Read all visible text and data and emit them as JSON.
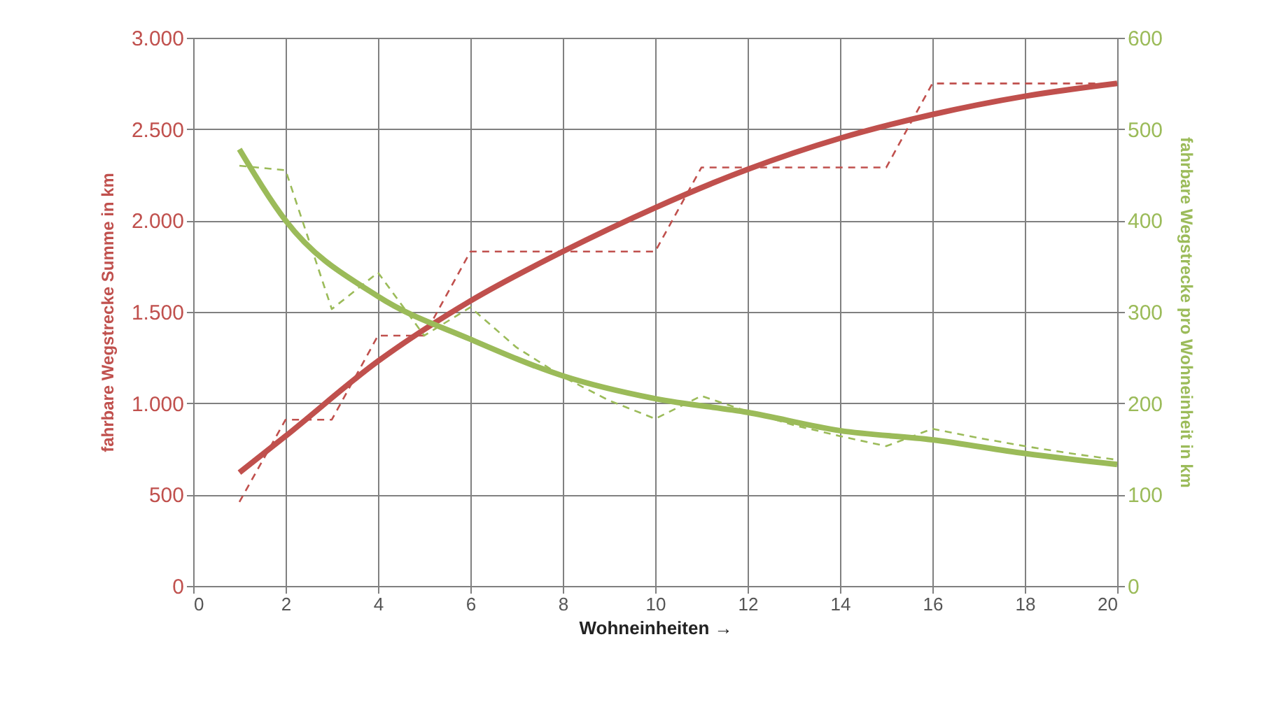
{
  "chart_data": {
    "type": "line",
    "xlabel": "Wohneinheiten  →",
    "ylabel": "fahrbare Wegstrecke Summe in km",
    "y2label": "fahrbare Wegstrecke pro Wohneinheit in km",
    "xlim": [
      0,
      20
    ],
    "xticks": [
      0,
      2,
      4,
      6,
      8,
      10,
      12,
      14,
      16,
      18,
      20
    ],
    "ylim": [
      0,
      3000
    ],
    "yticks": [
      0,
      500,
      {
        "value": 1000,
        "label": "1.000"
      },
      {
        "value": 1500,
        "label": "1.500"
      },
      {
        "value": 2000,
        "label": "2.000"
      },
      {
        "value": 2500,
        "label": "2.500"
      },
      {
        "value": 3000,
        "label": "3.000"
      }
    ],
    "y2lim": [
      0,
      600
    ],
    "y2ticks": [
      0,
      100,
      200,
      300,
      400,
      500,
      600
    ],
    "grid": true,
    "series": [
      {
        "color": "#c0504d",
        "line_style": "dashed",
        "x": [
          1,
          2,
          3,
          4,
          5,
          6,
          10,
          11,
          15,
          16,
          20
        ],
        "values": [
          460,
          910,
          910,
          1370,
          1370,
          1830,
          1830,
          2290,
          2290,
          2750,
          2750
        ]
      },
      {
        "color": "#c0504d",
        "line_style": "solid",
        "x": [
          1,
          2,
          4,
          6,
          8,
          10,
          12,
          14,
          16,
          18,
          20
        ],
        "values": [
          620,
          820,
          1230,
          1560,
          1830,
          2070,
          2280,
          2450,
          2580,
          2680,
          2750
        ]
      },
      {
        "color": "#9bbb59",
        "line_style": "dashed",
        "axis": "y2",
        "x": [
          1,
          2,
          3,
          4,
          5,
          6,
          7,
          8,
          9,
          10,
          11,
          12,
          13,
          14,
          15,
          16,
          17,
          18,
          19,
          20
        ],
        "values": [
          460,
          455,
          303,
          343,
          274,
          305,
          261,
          229,
          203,
          183,
          208,
          191,
          176,
          164,
          153,
          172,
          162,
          153,
          145,
          138
        ]
      },
      {
        "color": "#9bbb59",
        "line_style": "solid",
        "axis": "y2",
        "x": [
          1,
          2,
          4,
          6,
          8,
          10,
          12,
          14,
          16,
          18,
          20
        ],
        "values": [
          478,
          400,
          317,
          270,
          230,
          205,
          190,
          170,
          160,
          145,
          133
        ]
      }
    ]
  }
}
